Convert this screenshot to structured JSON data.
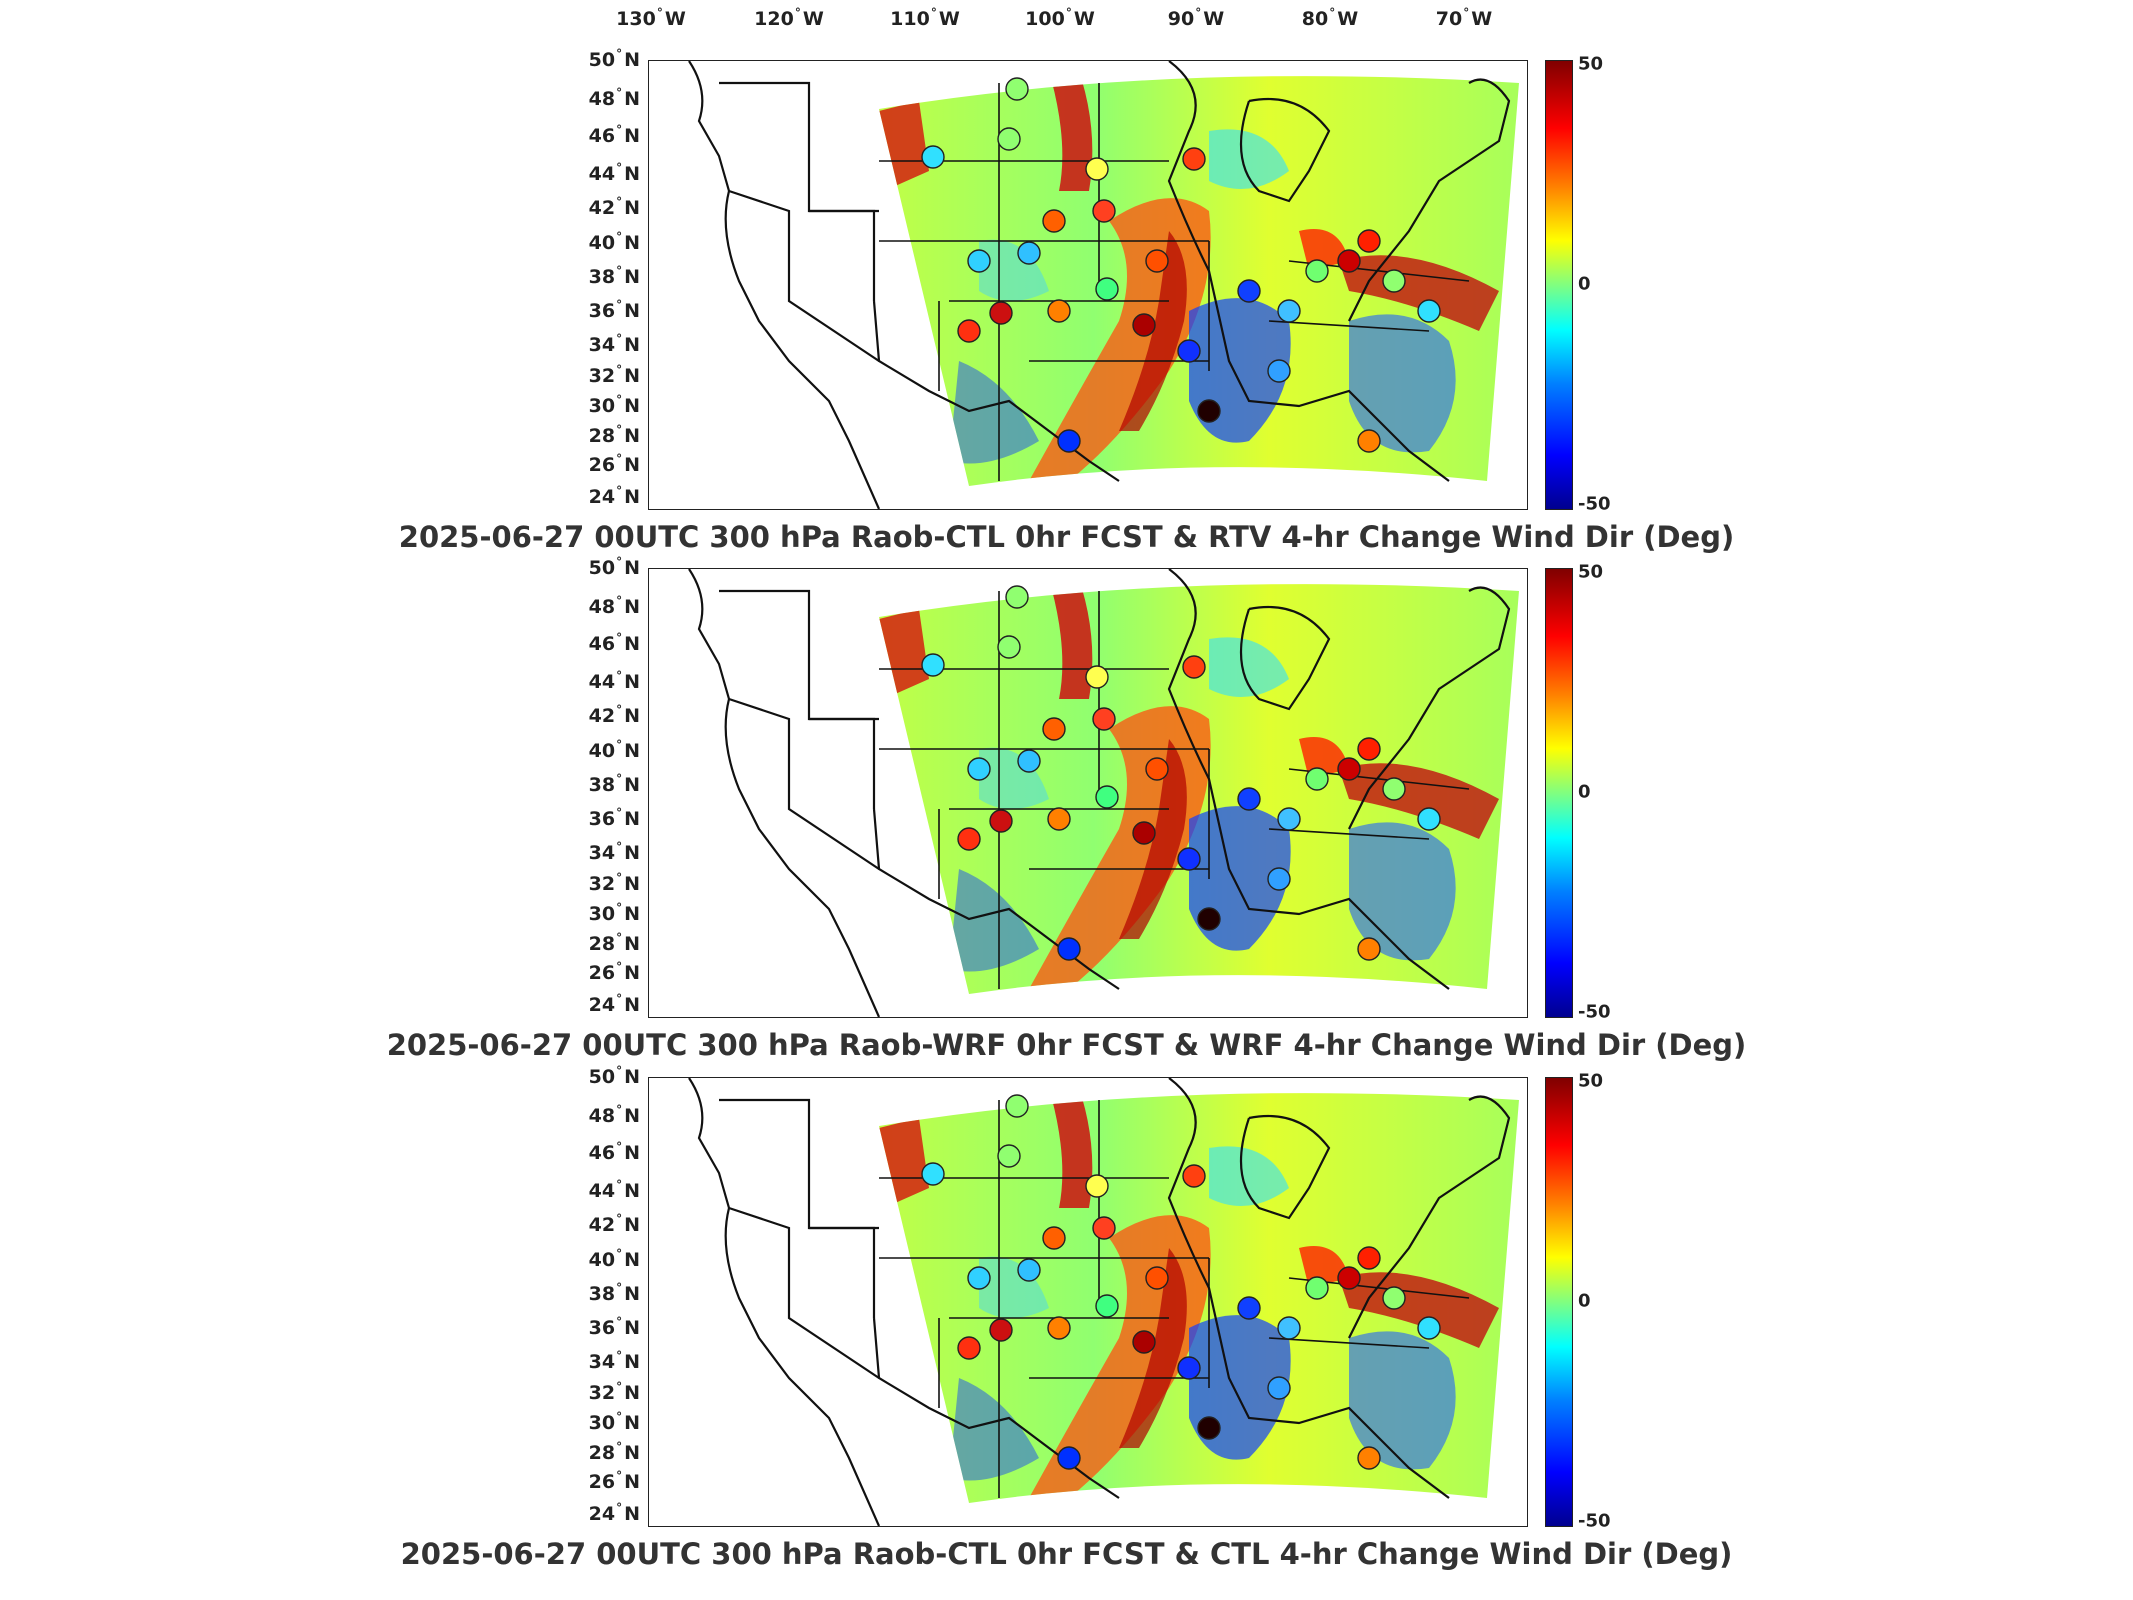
{
  "longitude_labels": [
    {
      "value": "130",
      "hemi": "W"
    },
    {
      "value": "120",
      "hemi": "W"
    },
    {
      "value": "110",
      "hemi": "W"
    },
    {
      "value": "100",
      "hemi": "W"
    },
    {
      "value": "90",
      "hemi": "W"
    },
    {
      "value": "80",
      "hemi": "W"
    },
    {
      "value": "70",
      "hemi": "W"
    }
  ],
  "latitude_labels": [
    {
      "value": "50",
      "hemi": "N"
    },
    {
      "value": "48",
      "hemi": "N"
    },
    {
      "value": "46",
      "hemi": "N"
    },
    {
      "value": "44",
      "hemi": "N"
    },
    {
      "value": "42",
      "hemi": "N"
    },
    {
      "value": "40",
      "hemi": "N"
    },
    {
      "value": "38",
      "hemi": "N"
    },
    {
      "value": "36",
      "hemi": "N"
    },
    {
      "value": "34",
      "hemi": "N"
    },
    {
      "value": "32",
      "hemi": "N"
    },
    {
      "value": "30",
      "hemi": "N"
    },
    {
      "value": "28",
      "hemi": "N"
    },
    {
      "value": "26",
      "hemi": "N"
    },
    {
      "value": "24",
      "hemi": "N"
    }
  ],
  "colorbar": {
    "max_label": "50",
    "mid_label": "0",
    "min_label": "-50",
    "colormap": [
      "#00008f",
      "#0000ff",
      "#0080ff",
      "#00ffff",
      "#80ff80",
      "#ffff00",
      "#ff8000",
      "#ff0000",
      "#800000"
    ]
  },
  "panels": [
    {
      "title": "2025-06-27 00UTC 300 hPa Raob-CTL 0hr FCST & RTV 4-hr Change Wind Dir (Deg)"
    },
    {
      "title": "2025-06-27 00UTC 300 hPa Raob-WRF 0hr FCST & WRF 4-hr Change Wind Dir (Deg)"
    },
    {
      "title": "2025-06-27 00UTC 300 hPa Raob-CTL 0hr FCST & CTL 4-hr Change Wind Dir (Deg)"
    }
  ],
  "colors": {
    "outline": "#111111",
    "title_text": "#333333"
  }
}
